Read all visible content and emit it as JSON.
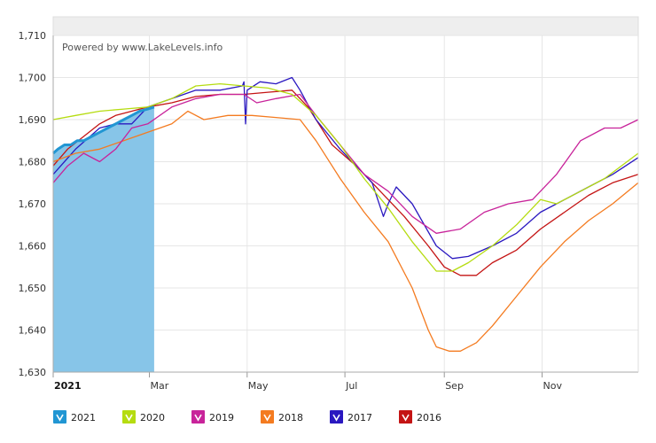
{
  "credit": "Powered by www.LakeLevels.info",
  "chart_data": {
    "type": "line",
    "title": "",
    "xlabel": "",
    "ylabel": "",
    "ylim": [
      1630,
      1710
    ],
    "yticks": [
      1630,
      1640,
      1650,
      1660,
      1670,
      1680,
      1690,
      1700,
      1710
    ],
    "ytick_labels": [
      "1,630",
      "1,640",
      "1,650",
      "1,660",
      "1,670",
      "1,680",
      "1,690",
      "1,700",
      "1,710"
    ],
    "xlim": [
      1,
      366
    ],
    "xticks": [
      {
        "day": 1,
        "label": "2021",
        "bold": true
      },
      {
        "day": 61,
        "label": "Mar",
        "bold": false
      },
      {
        "day": 122,
        "label": "May",
        "bold": false
      },
      {
        "day": 183,
        "label": "Jul",
        "bold": false
      },
      {
        "day": 245,
        "label": "Sep",
        "bold": false
      },
      {
        "day": 306,
        "label": "Nov",
        "bold": false
      }
    ],
    "legend_position": "bottom",
    "series": [
      {
        "name": "2021",
        "color": "#2196d3",
        "fill": "#87c5e8",
        "style": "area",
        "points": [
          [
            1,
            1682
          ],
          [
            4,
            1683
          ],
          [
            8,
            1684
          ],
          [
            12,
            1684
          ],
          [
            16,
            1685
          ],
          [
            20,
            1685
          ],
          [
            25,
            1686
          ],
          [
            30,
            1687
          ],
          [
            35,
            1688
          ],
          [
            40,
            1689
          ],
          [
            45,
            1690
          ],
          [
            50,
            1691
          ],
          [
            55,
            1692
          ],
          [
            60,
            1692.5
          ],
          [
            64,
            1693
          ]
        ]
      },
      {
        "name": "2020",
        "color": "#b5dc10",
        "points": [
          [
            1,
            1690
          ],
          [
            15,
            1691
          ],
          [
            30,
            1692
          ],
          [
            45,
            1692.5
          ],
          [
            60,
            1693
          ],
          [
            75,
            1695
          ],
          [
            90,
            1698
          ],
          [
            105,
            1698.5
          ],
          [
            120,
            1698
          ],
          [
            135,
            1697.5
          ],
          [
            150,
            1696
          ],
          [
            165,
            1691
          ],
          [
            180,
            1684
          ],
          [
            195,
            1676
          ],
          [
            210,
            1669
          ],
          [
            225,
            1661
          ],
          [
            240,
            1654
          ],
          [
            250,
            1654
          ],
          [
            260,
            1656
          ],
          [
            275,
            1660
          ],
          [
            290,
            1665
          ],
          [
            305,
            1671
          ],
          [
            315,
            1670
          ],
          [
            330,
            1673
          ],
          [
            345,
            1676
          ],
          [
            366,
            1682
          ]
        ]
      },
      {
        "name": "2019",
        "color": "#c8239a",
        "points": [
          [
            1,
            1675
          ],
          [
            10,
            1679
          ],
          [
            20,
            1682
          ],
          [
            30,
            1680
          ],
          [
            40,
            1683
          ],
          [
            50,
            1688
          ],
          [
            60,
            1689
          ],
          [
            75,
            1693
          ],
          [
            90,
            1695
          ],
          [
            105,
            1696
          ],
          [
            120,
            1696
          ],
          [
            128,
            1694
          ],
          [
            140,
            1695
          ],
          [
            155,
            1696
          ],
          [
            165,
            1691
          ],
          [
            180,
            1684
          ],
          [
            195,
            1677
          ],
          [
            210,
            1673
          ],
          [
            225,
            1667
          ],
          [
            240,
            1663
          ],
          [
            255,
            1664
          ],
          [
            270,
            1668
          ],
          [
            285,
            1670
          ],
          [
            300,
            1671
          ],
          [
            315,
            1677
          ],
          [
            330,
            1685
          ],
          [
            345,
            1688
          ],
          [
            355,
            1688
          ],
          [
            366,
            1690
          ]
        ]
      },
      {
        "name": "2018",
        "color": "#f47b20",
        "points": [
          [
            1,
            1680
          ],
          [
            15,
            1682
          ],
          [
            30,
            1683
          ],
          [
            45,
            1685
          ],
          [
            60,
            1687
          ],
          [
            75,
            1689
          ],
          [
            85,
            1692
          ],
          [
            95,
            1690
          ],
          [
            110,
            1691
          ],
          [
            125,
            1691
          ],
          [
            140,
            1690.5
          ],
          [
            155,
            1690
          ],
          [
            165,
            1685
          ],
          [
            180,
            1676
          ],
          [
            195,
            1668
          ],
          [
            210,
            1661
          ],
          [
            225,
            1650
          ],
          [
            235,
            1640
          ],
          [
            240,
            1636
          ],
          [
            248,
            1635
          ],
          [
            255,
            1635
          ],
          [
            265,
            1637
          ],
          [
            275,
            1641
          ],
          [
            290,
            1648
          ],
          [
            305,
            1655
          ],
          [
            320,
            1661
          ],
          [
            335,
            1666
          ],
          [
            350,
            1670
          ],
          [
            366,
            1675
          ]
        ]
      },
      {
        "name": "2017",
        "color": "#2a18c0",
        "points": [
          [
            1,
            1677
          ],
          [
            15,
            1683
          ],
          [
            30,
            1688
          ],
          [
            40,
            1689
          ],
          [
            50,
            1689
          ],
          [
            60,
            1693
          ],
          [
            75,
            1695
          ],
          [
            90,
            1697
          ],
          [
            105,
            1697
          ],
          [
            119,
            1698
          ],
          [
            120,
            1699
          ],
          [
            121,
            1689
          ],
          [
            122,
            1697
          ],
          [
            130,
            1699
          ],
          [
            140,
            1698.5
          ],
          [
            150,
            1700
          ],
          [
            155,
            1697
          ],
          [
            165,
            1690
          ],
          [
            180,
            1683
          ],
          [
            190,
            1679
          ],
          [
            200,
            1675
          ],
          [
            207,
            1667
          ],
          [
            210,
            1670
          ],
          [
            215,
            1674
          ],
          [
            225,
            1670
          ],
          [
            240,
            1660
          ],
          [
            250,
            1657
          ],
          [
            260,
            1657.5
          ],
          [
            275,
            1660
          ],
          [
            290,
            1663
          ],
          [
            305,
            1668
          ],
          [
            320,
            1671
          ],
          [
            335,
            1674
          ],
          [
            350,
            1677
          ],
          [
            366,
            1681
          ]
        ]
      },
      {
        "name": "2016",
        "color": "#c41414",
        "points": [
          [
            1,
            1679
          ],
          [
            10,
            1683
          ],
          [
            20,
            1686
          ],
          [
            30,
            1689
          ],
          [
            40,
            1691
          ],
          [
            50,
            1692
          ],
          [
            60,
            1693
          ],
          [
            75,
            1694
          ],
          [
            90,
            1695.5
          ],
          [
            105,
            1696
          ],
          [
            120,
            1696
          ],
          [
            135,
            1696.5
          ],
          [
            150,
            1697
          ],
          [
            160,
            1693
          ],
          [
            175,
            1684
          ],
          [
            190,
            1679
          ],
          [
            205,
            1673
          ],
          [
            220,
            1667
          ],
          [
            235,
            1660
          ],
          [
            245,
            1655
          ],
          [
            255,
            1653
          ],
          [
            265,
            1653
          ],
          [
            275,
            1656
          ],
          [
            290,
            1659
          ],
          [
            305,
            1664
          ],
          [
            320,
            1668
          ],
          [
            335,
            1672
          ],
          [
            350,
            1675
          ],
          [
            366,
            1677
          ]
        ]
      }
    ]
  }
}
